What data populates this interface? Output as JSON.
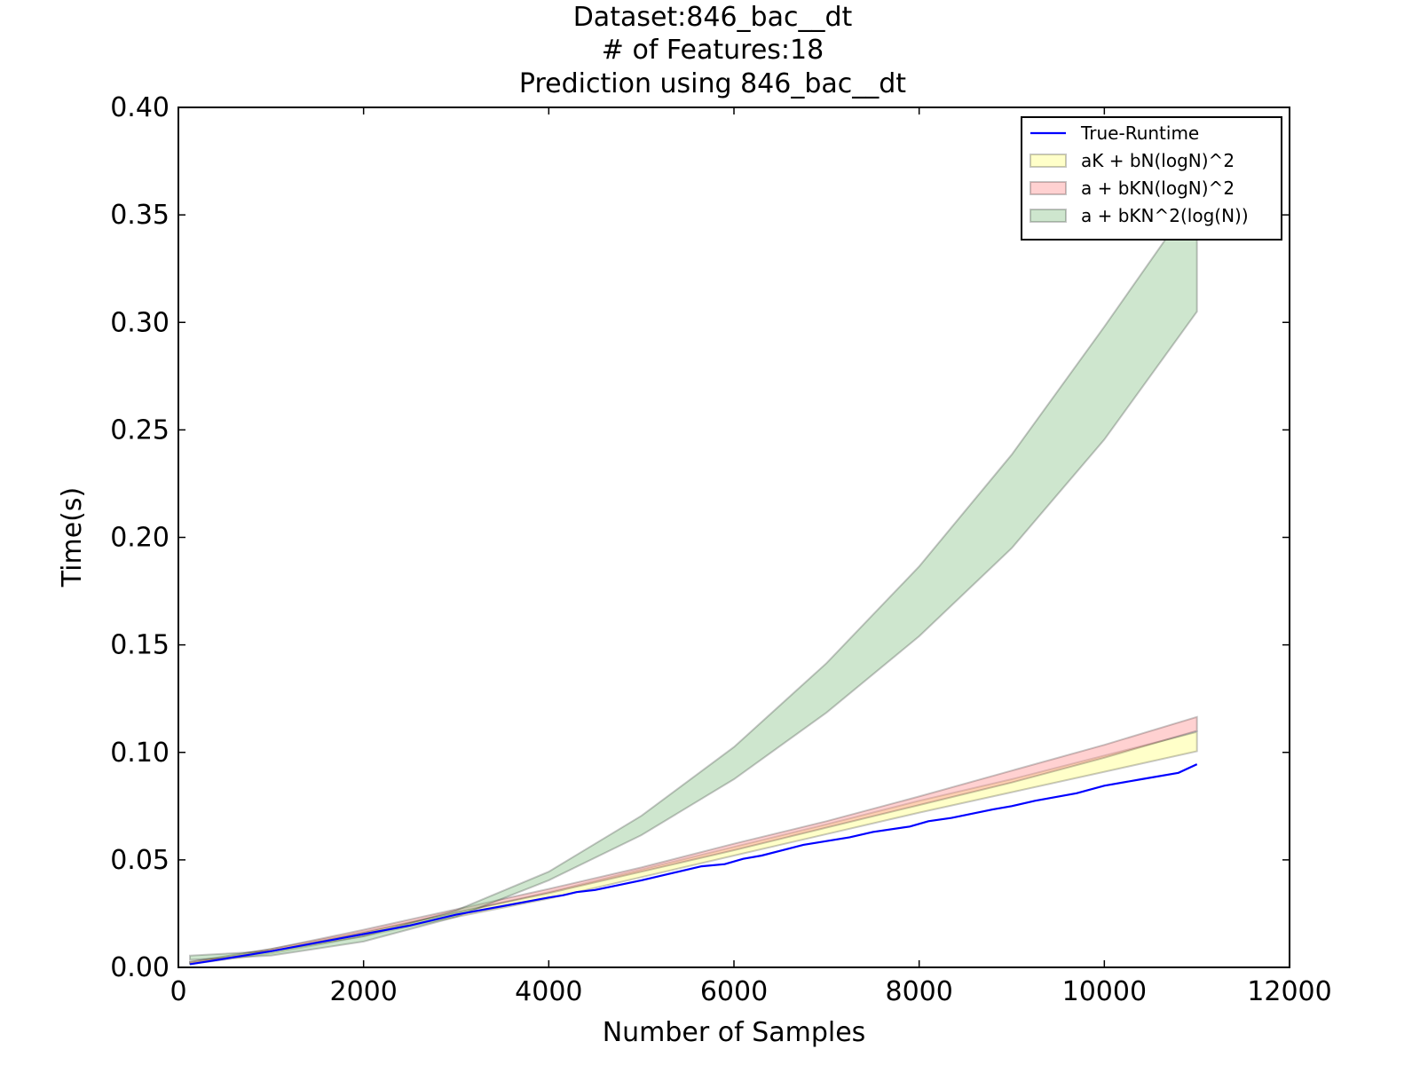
{
  "chart_data": {
    "type": "line",
    "title_lines": [
      "Dataset:846_bac__dt",
      "# of Features:18",
      "Prediction using 846_bac__dt"
    ],
    "xlabel": "Number of Samples",
    "ylabel": "Time(s)",
    "xlim": [
      0,
      12000
    ],
    "ylim": [
      0,
      0.4
    ],
    "xticks": [
      0,
      2000,
      4000,
      6000,
      8000,
      10000,
      12000
    ],
    "yticks": [
      0.0,
      0.05,
      0.1,
      0.15,
      0.2,
      0.25,
      0.3,
      0.35,
      0.4
    ],
    "xtick_labels": [
      "0",
      "2000",
      "4000",
      "6000",
      "8000",
      "10000",
      "12000"
    ],
    "ytick_labels": [
      "0.00",
      "0.05",
      "0.10",
      "0.15",
      "0.20",
      "0.25",
      "0.30",
      "0.35",
      "0.40"
    ],
    "grid": false,
    "legend_position": "top-right",
    "legend": [
      {
        "label": "True-Runtime",
        "kind": "line",
        "color": "#0000ff"
      },
      {
        "label": "aK + bN(logN)^2",
        "kind": "band",
        "color": "#ffff88"
      },
      {
        "label": "a + bKN(logN)^2",
        "kind": "band",
        "color": "#ff9999"
      },
      {
        "label": "a + bKN^2(log(N))",
        "kind": "band",
        "color": "#92c892"
      }
    ],
    "series": [
      {
        "name": "True-Runtime",
        "kind": "line",
        "color": "#0000ff",
        "x": [
          125,
          500,
          1000,
          1500,
          2000,
          2500,
          3000,
          3500,
          4000,
          4150,
          4300,
          4500,
          5000,
          5250,
          5650,
          5900,
          6100,
          6300,
          6750,
          7250,
          7500,
          7900,
          8100,
          8350,
          8800,
          9000,
          9250,
          9700,
          10000,
          10400,
          10800,
          11000
        ],
        "y": [
          0.0015,
          0.004,
          0.0075,
          0.0115,
          0.0155,
          0.0195,
          0.0245,
          0.0285,
          0.0325,
          0.0335,
          0.035,
          0.036,
          0.0405,
          0.043,
          0.047,
          0.048,
          0.0505,
          0.052,
          0.057,
          0.0605,
          0.063,
          0.0655,
          0.068,
          0.0695,
          0.0735,
          0.075,
          0.0775,
          0.081,
          0.0845,
          0.0875,
          0.0905,
          0.0945
        ]
      },
      {
        "name": "aK + bN(logN)^2",
        "kind": "band",
        "color": "#ffff88",
        "x": [
          125,
          1000,
          2000,
          3000,
          4000,
          5000,
          6000,
          7000,
          8000,
          9000,
          10000,
          11000
        ],
        "lower": [
          0.0015,
          0.0065,
          0.0145,
          0.0235,
          0.032,
          0.042,
          0.052,
          0.062,
          0.072,
          0.0815,
          0.091,
          0.1005
        ],
        "upper": [
          0.0025,
          0.0085,
          0.0165,
          0.0255,
          0.035,
          0.0455,
          0.056,
          0.0665,
          0.0775,
          0.0875,
          0.0985,
          0.1095
        ]
      },
      {
        "name": "a + bKN(logN)^2",
        "kind": "band",
        "color": "#ff9999",
        "x": [
          125,
          1000,
          2000,
          3000,
          4000,
          5000,
          6000,
          7000,
          8000,
          9000,
          10000,
          11000
        ],
        "lower": [
          0.002,
          0.0075,
          0.016,
          0.0255,
          0.0345,
          0.0445,
          0.0545,
          0.065,
          0.0755,
          0.086,
          0.0975,
          0.11
        ],
        "upper": [
          0.0025,
          0.0085,
          0.0175,
          0.027,
          0.0365,
          0.0465,
          0.0575,
          0.068,
          0.0795,
          0.0915,
          0.1035,
          0.1165
        ]
      },
      {
        "name": "a + bKN^2(log(N))",
        "kind": "band",
        "color": "#92c892",
        "x": [
          125,
          1000,
          2000,
          3000,
          4000,
          5000,
          6000,
          7000,
          8000,
          9000,
          10000,
          11000
        ],
        "lower": [
          0.0035,
          0.0055,
          0.012,
          0.0235,
          0.0405,
          0.0615,
          0.0875,
          0.1185,
          0.154,
          0.195,
          0.2455,
          0.305
        ],
        "upper": [
          0.0055,
          0.0075,
          0.0145,
          0.0265,
          0.0445,
          0.0705,
          0.1025,
          0.1415,
          0.1865,
          0.2385,
          0.298,
          0.3595
        ]
      }
    ]
  }
}
